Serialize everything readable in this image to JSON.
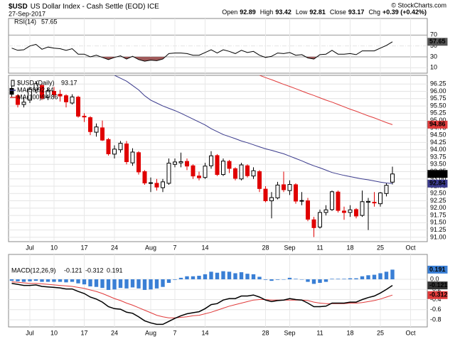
{
  "header": {
    "symbol": "$USD",
    "name": "US Dollar Index - Cash Settle (EOD) ICE",
    "date": "27-Sep-2017",
    "credit": "© StockCharts.com",
    "quote": [
      {
        "label": "Open",
        "value": 92.89
      },
      {
        "label": "High",
        "value": 93.42
      },
      {
        "label": "Low",
        "value": 92.81
      },
      {
        "label": "Close",
        "value": 93.17
      },
      {
        "label": "Chg",
        "value": "+0.39 (+0.42%)"
      }
    ]
  },
  "chart_data": [
    {
      "type": "rsi",
      "name": "RSI(14)",
      "color": "#000000",
      "fill_color": "#a05a5a",
      "ylim": [
        0,
        90
      ],
      "yticks": [
        70,
        50,
        30,
        10
      ],
      "grid": true,
      "values": [
        46,
        42,
        43,
        50,
        53,
        44,
        48,
        46,
        45,
        42,
        45,
        35,
        35,
        30,
        33,
        29,
        25,
        29,
        32,
        26,
        31,
        25,
        22,
        24,
        23,
        26,
        36,
        37,
        37,
        36,
        33,
        33,
        38,
        43,
        37,
        43,
        40,
        36,
        42,
        38,
        40,
        33,
        29,
        31,
        37,
        36,
        38,
        33,
        34,
        28,
        26,
        34,
        35,
        42,
        35,
        35,
        36,
        34,
        41,
        41,
        41,
        46,
        51,
        57.65,
        null,
        null,
        null
      ]
    },
    {
      "type": "candlestick",
      "name": "$USD (Daily)",
      "up_color": "#000000",
      "down_color": "#e00000",
      "ylim": [
        90.9,
        96.5
      ],
      "grid": true,
      "categories": [
        null,
        null,
        null,
        "Jul",
        null,
        null,
        null,
        "10",
        null,
        null,
        null,
        null,
        "17",
        null,
        null,
        null,
        null,
        "24",
        null,
        null,
        null,
        null,
        null,
        "Aug",
        null,
        null,
        null,
        "7",
        null,
        null,
        null,
        null,
        "14",
        null,
        null,
        null,
        null,
        null,
        null,
        null,
        null,
        null,
        "28",
        null,
        null,
        null,
        "Sep",
        null,
        null,
        null,
        null,
        "11",
        null,
        null,
        null,
        null,
        "18",
        null,
        null,
        null,
        null,
        "25",
        null,
        null,
        null,
        null,
        "Oct"
      ],
      "yticks": [
        {
          "value": 91,
          "label": "91.00"
        },
        91.25,
        {
          "value": 91.5,
          "label": "91.50"
        },
        91.75,
        {
          "value": 92,
          "label": "92.00"
        },
        92.25,
        {
          "value": 92.5,
          "label": "92.50"
        },
        92.75,
        {
          "value": 93,
          "label": "93.00"
        },
        93.25,
        {
          "value": 93.5,
          "label": "93.50"
        },
        93.75,
        {
          "value": 94,
          "label": "94.00"
        },
        94.25,
        {
          "value": 94.5,
          "label": "94.50"
        },
        94.75,
        {
          "value": 95,
          "label": "95.00"
        },
        95.25,
        {
          "value": 95.5,
          "label": "95.50"
        },
        95.75,
        {
          "value": 96,
          "label": "96.00"
        },
        96.25
      ],
      "ohlc": [
        [
          96.1,
          96.2,
          95.8,
          95.9
        ],
        [
          95.85,
          95.9,
          95.45,
          95.55
        ],
        [
          95.55,
          95.8,
          95.45,
          95.63
        ],
        [
          95.7,
          96.15,
          95.6,
          96.08
        ],
        [
          96.05,
          96.35,
          95.95,
          96.26
        ],
        [
          96.2,
          96.25,
          95.7,
          95.77
        ],
        [
          95.8,
          96.1,
          95.7,
          96.02
        ],
        [
          96,
          96.15,
          95.8,
          95.88
        ],
        [
          95.9,
          96.05,
          95.65,
          95.84
        ],
        [
          95.85,
          95.9,
          95.45,
          95.64
        ],
        [
          95.6,
          95.9,
          95.55,
          95.81
        ],
        [
          95.8,
          95.85,
          95.1,
          95.15
        ],
        [
          95.15,
          95.25,
          94.95,
          95.12
        ],
        [
          95.1,
          95.15,
          94.5,
          94.62
        ],
        [
          94.6,
          94.9,
          94.45,
          94.78
        ],
        [
          94.75,
          95,
          94.3,
          94.33
        ],
        [
          94.35,
          94.4,
          93.8,
          93.86
        ],
        [
          93.85,
          94.15,
          93.7,
          94.02
        ],
        [
          94,
          94.3,
          93.9,
          94.22
        ],
        [
          94.2,
          94.3,
          93.5,
          93.59
        ],
        [
          93.55,
          94.05,
          93.45,
          93.92
        ],
        [
          93.9,
          93.95,
          93.15,
          93.24
        ],
        [
          93.25,
          93.3,
          92.8,
          92.86
        ],
        [
          92.85,
          93.05,
          92.55,
          92.87
        ],
        [
          92.85,
          93,
          92.6,
          92.72
        ],
        [
          92.7,
          93,
          92.55,
          92.9
        ],
        [
          92.85,
          93.7,
          92.8,
          93.54
        ],
        [
          93.5,
          93.7,
          93.4,
          93.58
        ],
        [
          93.55,
          93.9,
          93.4,
          93.59
        ],
        [
          93.6,
          93.7,
          93.3,
          93.44
        ],
        [
          93.45,
          93.5,
          93,
          93.1
        ],
        [
          93.1,
          93.25,
          92.95,
          93.04
        ],
        [
          93.05,
          93.55,
          93,
          93.44
        ],
        [
          93.45,
          93.95,
          93.35,
          93.79
        ],
        [
          93.8,
          93.85,
          93.1,
          93.15
        ],
        [
          93.15,
          93.7,
          93.1,
          93.61
        ],
        [
          93.6,
          93.65,
          93.2,
          93.36
        ],
        [
          93.35,
          93.4,
          92.95,
          93.02
        ],
        [
          93,
          93.55,
          92.95,
          93.48
        ],
        [
          93.45,
          93.5,
          93.05,
          93.11
        ],
        [
          93.1,
          93.4,
          93,
          93.28
        ],
        [
          93.25,
          93.3,
          92.55,
          92.67
        ],
        [
          92.65,
          92.75,
          92.2,
          92.25
        ],
        [
          92.25,
          92.55,
          91.65,
          92.36
        ],
        [
          92.35,
          92.9,
          92.3,
          92.79
        ],
        [
          92.8,
          93.25,
          92.55,
          92.63
        ],
        [
          92.6,
          92.95,
          92.45,
          92.81
        ],
        [
          92.8,
          92.85,
          92.15,
          92.24
        ],
        [
          92.25,
          92.55,
          92.1,
          92.26
        ],
        [
          92.25,
          92.35,
          91.55,
          91.62
        ],
        [
          91.6,
          91.7,
          91.01,
          91.33
        ],
        [
          91.35,
          91.95,
          91.3,
          91.85
        ],
        [
          91.85,
          92.1,
          91.75,
          91.94
        ],
        [
          91.95,
          92.6,
          91.9,
          92.56
        ],
        [
          92.55,
          92.6,
          91.85,
          91.92
        ],
        [
          91.9,
          92.05,
          91.6,
          91.85
        ],
        [
          91.85,
          92.1,
          91.7,
          91.94
        ],
        [
          91.95,
          92,
          91.65,
          91.73
        ],
        [
          91.75,
          92.6,
          91.7,
          92.22
        ],
        [
          92.2,
          92.35,
          91.25,
          92.23
        ],
        [
          92.2,
          92.55,
          92.05,
          92.18
        ],
        [
          92.15,
          92.55,
          92.05,
          92.52
        ],
        [
          92.5,
          92.85,
          92.4,
          92.78
        ],
        [
          92.89,
          93.42,
          92.81,
          93.17
        ],
        null,
        null,
        null
      ],
      "series": [
        {
          "name": "MA(50)",
          "color": "#3a3a8c",
          "values": [
            null,
            null,
            null,
            null,
            null,
            null,
            null,
            null,
            null,
            null,
            null,
            null,
            null,
            null,
            null,
            null,
            null,
            96.55,
            96.45,
            96.35,
            96.2,
            96.05,
            95.85,
            95.7,
            95.6,
            95.5,
            95.42,
            95.34,
            95.25,
            95.15,
            95.05,
            94.95,
            94.85,
            94.72,
            94.62,
            94.52,
            94.45,
            94.38,
            94.3,
            94.24,
            94.17,
            94.1,
            94.03,
            93.98,
            93.92,
            93.86,
            93.78,
            93.7,
            93.62,
            93.53,
            93.45,
            93.38,
            93.3,
            93.22,
            93.17,
            93.12,
            93.08,
            93.04,
            93,
            92.97,
            92.93,
            92.89,
            92.86,
            92.84,
            null,
            null,
            null
          ]
        },
        {
          "name": "MA(100)",
          "color": "#e03a3a",
          "values": [
            null,
            null,
            null,
            null,
            null,
            null,
            null,
            null,
            null,
            null,
            null,
            null,
            null,
            null,
            null,
            null,
            null,
            null,
            null,
            null,
            null,
            null,
            null,
            null,
            null,
            null,
            null,
            null,
            null,
            null,
            null,
            null,
            null,
            null,
            null,
            null,
            null,
            null,
            null,
            null,
            null,
            96.55,
            96.47,
            96.4,
            96.32,
            96.24,
            96.17,
            96.09,
            96.01,
            95.93,
            95.86,
            95.78,
            95.7,
            95.63,
            95.55,
            95.47,
            95.39,
            95.32,
            95.24,
            95.16,
            95.09,
            95.01,
            94.93,
            94.86,
            null,
            null,
            null
          ]
        }
      ]
    },
    {
      "type": "macd",
      "name": "MACD(12,26,9)",
      "ylim": [
        -0.912,
        0.295
      ],
      "yticks": [
        {
          "value": 0,
          "label": "0.0"
        },
        -0.2,
        -0.4,
        -0.6,
        -0.8
      ],
      "grid": true,
      "series": [
        {
          "name": "MACD",
          "color": "#000000",
          "values": [
            -0.08,
            -0.1,
            -0.12,
            -0.12,
            -0.11,
            -0.14,
            -0.15,
            -0.16,
            -0.17,
            -0.19,
            -0.19,
            -0.24,
            -0.28,
            -0.35,
            -0.39,
            -0.45,
            -0.54,
            -0.58,
            -0.59,
            -0.65,
            -0.67,
            -0.74,
            -0.82,
            -0.86,
            -0.89,
            -0.89,
            -0.83,
            -0.77,
            -0.72,
            -0.68,
            -0.66,
            -0.64,
            -0.58,
            -0.5,
            -0.48,
            -0.41,
            -0.38,
            -0.38,
            -0.33,
            -0.33,
            -0.31,
            -0.35,
            -0.41,
            -0.44,
            -0.42,
            -0.41,
            -0.38,
            -0.4,
            -0.41,
            -0.47,
            -0.54,
            -0.54,
            -0.53,
            -0.47,
            -0.47,
            -0.47,
            -0.45,
            -0.45,
            -0.4,
            -0.36,
            -0.33,
            -0.27,
            -0.2,
            -0.121,
            null,
            null,
            null
          ]
        },
        {
          "name": "Signal",
          "color": "#e03a3a",
          "values": [
            -0.05,
            -0.06,
            -0.07,
            -0.08,
            -0.08,
            -0.09,
            -0.1,
            -0.11,
            -0.12,
            -0.13,
            -0.14,
            -0.16,
            -0.18,
            -0.21,
            -0.24,
            -0.28,
            -0.33,
            -0.38,
            -0.42,
            -0.47,
            -0.51,
            -0.56,
            -0.61,
            -0.66,
            -0.71,
            -0.74,
            -0.76,
            -0.76,
            -0.75,
            -0.74,
            -0.72,
            -0.71,
            -0.68,
            -0.65,
            -0.61,
            -0.57,
            -0.53,
            -0.5,
            -0.47,
            -0.44,
            -0.41,
            -0.4,
            -0.4,
            -0.41,
            -0.41,
            -0.41,
            -0.41,
            -0.41,
            -0.41,
            -0.42,
            -0.45,
            -0.47,
            -0.48,
            -0.48,
            -0.48,
            -0.48,
            -0.47,
            -0.47,
            -0.46,
            -0.44,
            -0.42,
            -0.39,
            -0.35,
            -0.312,
            null,
            null,
            null
          ]
        },
        {
          "name": "Histogram",
          "color": "#3a7fd5",
          "values": [
            -0.03,
            -0.04,
            -0.05,
            -0.04,
            -0.03,
            -0.05,
            -0.05,
            -0.05,
            -0.05,
            -0.06,
            -0.05,
            -0.08,
            -0.1,
            -0.14,
            -0.15,
            -0.17,
            -0.21,
            -0.2,
            -0.17,
            -0.18,
            -0.16,
            -0.18,
            -0.21,
            -0.2,
            -0.18,
            -0.15,
            -0.07,
            -0.01,
            0.03,
            0.06,
            0.06,
            0.07,
            0.1,
            0.15,
            0.13,
            0.16,
            0.15,
            0.12,
            0.14,
            0.11,
            0.1,
            0.05,
            -0.01,
            -0.03,
            -0.01,
            0,
            0.03,
            0.01,
            0,
            -0.05,
            -0.09,
            -0.07,
            -0.05,
            0.01,
            0.01,
            0.01,
            0.02,
            0.02,
            0.06,
            0.08,
            0.09,
            0.12,
            0.15,
            0.191,
            null,
            null,
            null
          ]
        }
      ]
    }
  ]
}
